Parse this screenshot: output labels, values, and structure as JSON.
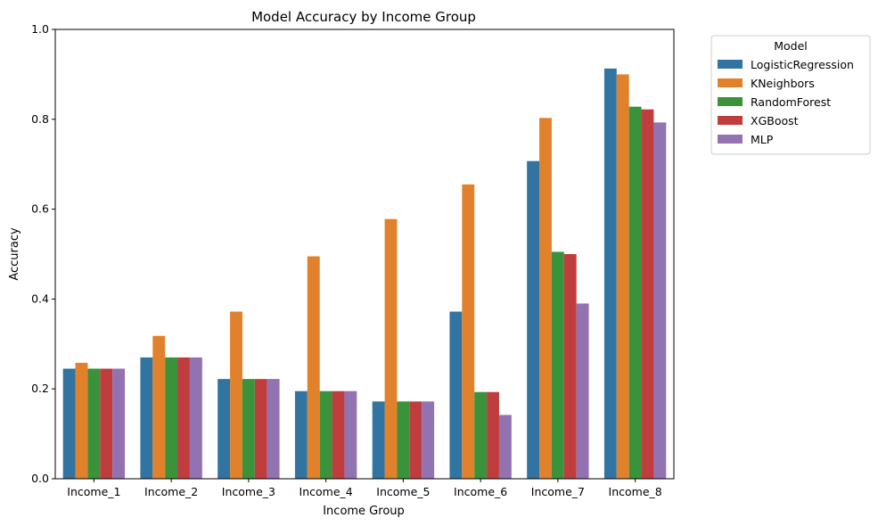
{
  "chart_data": {
    "type": "bar",
    "title": "Model Accuracy by Income Group",
    "xlabel": "Income Group",
    "ylabel": "Accuracy",
    "ylim": [
      0,
      1.0
    ],
    "yticks": [
      "0.0",
      "0.2",
      "0.4",
      "0.6",
      "0.8",
      "1.0"
    ],
    "grid": false,
    "legend_position": "outside-top-right",
    "legend_title": "Model",
    "categories": [
      "Income_1",
      "Income_2",
      "Income_3",
      "Income_4",
      "Income_5",
      "Income_6",
      "Income_7",
      "Income_8"
    ],
    "series": [
      {
        "name": "LogisticRegression",
        "color": "#3274a1",
        "values": [
          0.245,
          0.27,
          0.222,
          0.195,
          0.172,
          0.372,
          0.707,
          0.913
        ]
      },
      {
        "name": "KNeighbors",
        "color": "#e1812c",
        "values": [
          0.258,
          0.318,
          0.372,
          0.495,
          0.578,
          0.655,
          0.803,
          0.9
        ]
      },
      {
        "name": "RandomForest",
        "color": "#3a923a",
        "values": [
          0.245,
          0.27,
          0.222,
          0.195,
          0.172,
          0.193,
          0.505,
          0.828
        ]
      },
      {
        "name": "XGBoost",
        "color": "#c03d3e",
        "values": [
          0.245,
          0.27,
          0.222,
          0.195,
          0.172,
          0.193,
          0.5,
          0.822
        ]
      },
      {
        "name": "MLP",
        "color": "#9372b2",
        "values": [
          0.245,
          0.27,
          0.222,
          0.195,
          0.172,
          0.142,
          0.39,
          0.793
        ]
      }
    ]
  }
}
